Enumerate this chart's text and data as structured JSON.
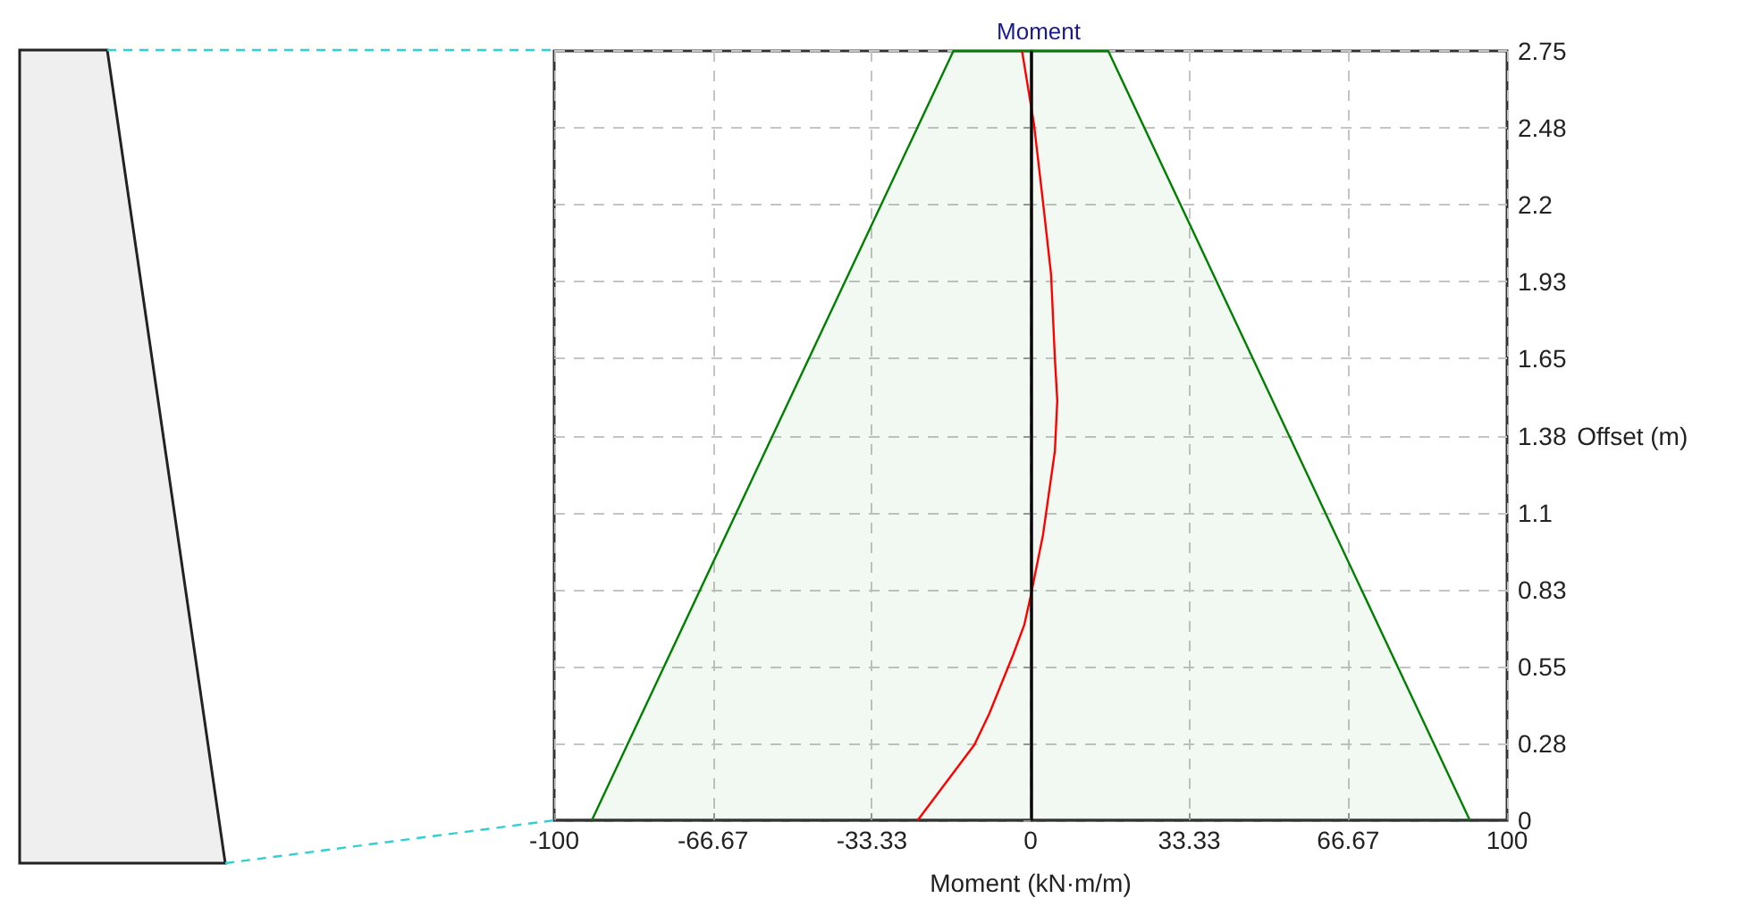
{
  "chart_data": {
    "type": "line",
    "title": "Moment",
    "xlabel": "Moment (kN·m/m)",
    "ylabel": "Offset (m)",
    "xlim": [
      -100,
      100
    ],
    "xticks": [
      -100,
      -66.67,
      -33.33,
      0,
      33.33,
      66.67,
      100
    ],
    "ylim": [
      0,
      2.75
    ],
    "yticks": [
      0,
      {
        "value": 0.275,
        "label": "0.28"
      },
      0.55,
      {
        "value": 0.825,
        "label": "0.83"
      },
      1.1,
      {
        "value": 1.375,
        "label": "1.38"
      },
      1.65,
      {
        "value": 1.925,
        "label": "1.93"
      },
      2.2,
      {
        "value": 2.475,
        "label": "2.48"
      },
      2.75
    ],
    "grid": true,
    "marker": "none",
    "line_style": "solid",
    "series": [
      {
        "type": "area",
        "color": "#008000",
        "x": [
          -92.1,
          -16.2,
          16.3,
          92.2
        ],
        "values": [
          0,
          2.75,
          2.75,
          0
        ]
      },
      {
        "color": "#ff0000",
        "x": [
          -23.7,
          -11.8,
          -8.7,
          -3.7,
          -1.3,
          0,
          2.6,
          5.1,
          5.6,
          5.1,
          4.3,
          2.6,
          0.7,
          -1.8
        ],
        "values": [
          0,
          0.27,
          0.38,
          0.59,
          0.7,
          0.8,
          1.02,
          1.32,
          1.5,
          1.65,
          1.95,
          2.21,
          2.49,
          2.75
        ]
      }
    ],
    "ref_lines": [
      {
        "axis": "x",
        "value": 0,
        "color": "#000000"
      }
    ]
  }
}
